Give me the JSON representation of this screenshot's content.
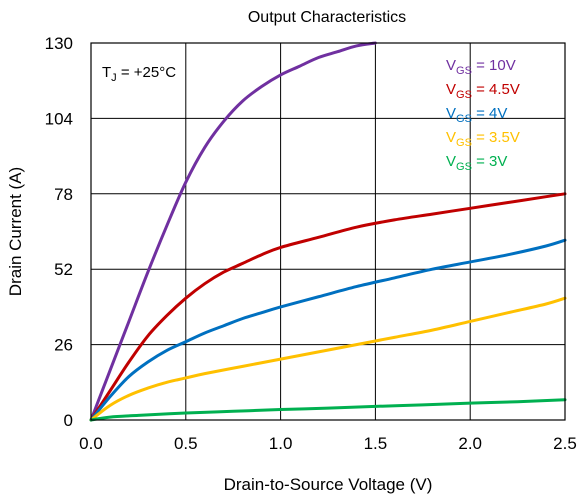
{
  "chart_data": {
    "type": "line",
    "title": "Output Characteristics",
    "xlabel": "Drain-to-Source Voltage (V)",
    "ylabel": "Drain Current (A)",
    "xlim": [
      0,
      2.5
    ],
    "ylim": [
      0,
      130
    ],
    "x_ticks": [
      "0.0",
      "0.5",
      "1.0",
      "1.5",
      "2.0",
      "2.5"
    ],
    "y_ticks": [
      "0",
      "26",
      "52",
      "78",
      "104",
      "130"
    ],
    "grid": true,
    "legend_position": "top-right",
    "annotation": {
      "main": "T",
      "sub": "J",
      "rest": " = +25°C"
    },
    "series": [
      {
        "legend_main": "V",
        "legend_sub": "GS",
        "legend_rest": " = 10V",
        "color": "#7030a0",
        "points": [
          [
            0,
            0
          ],
          [
            0.1,
            17
          ],
          [
            0.2,
            34
          ],
          [
            0.3,
            51
          ],
          [
            0.4,
            67
          ],
          [
            0.5,
            82
          ],
          [
            0.6,
            94
          ],
          [
            0.7,
            103
          ],
          [
            0.8,
            110
          ],
          [
            0.9,
            115
          ],
          [
            1.0,
            119
          ],
          [
            1.1,
            122
          ],
          [
            1.2,
            125
          ],
          [
            1.3,
            127
          ],
          [
            1.4,
            129
          ],
          [
            1.5,
            130
          ]
        ]
      },
      {
        "legend_main": "V",
        "legend_sub": "GS",
        "legend_rest": " = 4.5V",
        "color": "#c00000",
        "points": [
          [
            0,
            0
          ],
          [
            0.1,
            10
          ],
          [
            0.2,
            20
          ],
          [
            0.3,
            29
          ],
          [
            0.4,
            36
          ],
          [
            0.5,
            42
          ],
          [
            0.6,
            47
          ],
          [
            0.7,
            51
          ],
          [
            0.8,
            54
          ],
          [
            0.9,
            57
          ],
          [
            1.0,
            59.5
          ],
          [
            1.2,
            63
          ],
          [
            1.4,
            66.5
          ],
          [
            1.6,
            69
          ],
          [
            1.8,
            71
          ],
          [
            2.0,
            73
          ],
          [
            2.2,
            75
          ],
          [
            2.4,
            77
          ],
          [
            2.5,
            78
          ]
        ]
      },
      {
        "legend_main": "V",
        "legend_sub": "GS",
        "legend_rest": " = 4V",
        "color": "#0070c0",
        "points": [
          [
            0,
            0
          ],
          [
            0.1,
            8
          ],
          [
            0.2,
            15
          ],
          [
            0.3,
            20
          ],
          [
            0.4,
            24
          ],
          [
            0.5,
            27
          ],
          [
            0.6,
            30
          ],
          [
            0.7,
            32.5
          ],
          [
            0.8,
            35
          ],
          [
            0.9,
            37
          ],
          [
            1.0,
            39
          ],
          [
            1.2,
            42.5
          ],
          [
            1.4,
            46
          ],
          [
            1.6,
            49
          ],
          [
            1.8,
            52
          ],
          [
            2.0,
            54.5
          ],
          [
            2.2,
            57
          ],
          [
            2.4,
            60
          ],
          [
            2.5,
            62
          ]
        ]
      },
      {
        "legend_main": "V",
        "legend_sub": "GS",
        "legend_rest": " = 3.5V",
        "color": "#ffc000",
        "points": [
          [
            0,
            0
          ],
          [
            0.1,
            5
          ],
          [
            0.2,
            8.5
          ],
          [
            0.3,
            11
          ],
          [
            0.4,
            13
          ],
          [
            0.5,
            14.5
          ],
          [
            0.6,
            16
          ],
          [
            0.8,
            18.5
          ],
          [
            1.0,
            21
          ],
          [
            1.2,
            23.5
          ],
          [
            1.4,
            26
          ],
          [
            1.6,
            28.5
          ],
          [
            1.8,
            31
          ],
          [
            2.0,
            34
          ],
          [
            2.2,
            37
          ],
          [
            2.4,
            40
          ],
          [
            2.5,
            42
          ]
        ]
      },
      {
        "legend_main": "V",
        "legend_sub": "GS",
        "legend_rest": " = 3V",
        "color": "#00b050",
        "points": [
          [
            0,
            0
          ],
          [
            0.1,
            1
          ],
          [
            0.25,
            1.6
          ],
          [
            0.5,
            2.4
          ],
          [
            0.75,
            3
          ],
          [
            1.0,
            3.6
          ],
          [
            1.25,
            4.1
          ],
          [
            1.5,
            4.7
          ],
          [
            1.75,
            5.2
          ],
          [
            2.0,
            5.8
          ],
          [
            2.25,
            6.3
          ],
          [
            2.5,
            7
          ]
        ]
      }
    ]
  }
}
